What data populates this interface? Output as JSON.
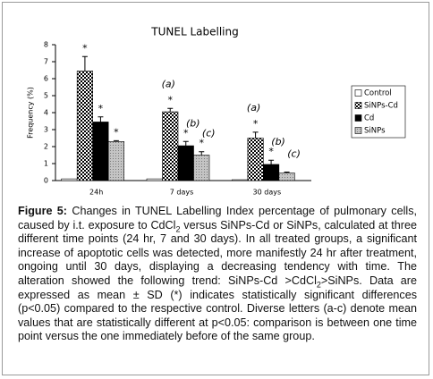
{
  "chart_data": {
    "type": "bar",
    "title": "TUNEL Labelling",
    "y_label": "Frequency (%)",
    "categories": [
      "24h",
      "7 days",
      "30 days"
    ],
    "ylim": [
      0,
      8
    ],
    "yticks": [
      0,
      1,
      2,
      3,
      4,
      5,
      6,
      7,
      8
    ],
    "series": [
      {
        "name": "Control",
        "color": "#ffffff",
        "values": [
          0.1,
          0.1,
          0.05
        ],
        "errors": [
          null,
          null,
          null
        ],
        "stars": [
          null,
          null,
          null
        ],
        "letters": [
          null,
          null,
          null
        ]
      },
      {
        "name": "SiNPs-Cd",
        "color": "#000000",
        "pattern": "checker",
        "values": [
          6.45,
          4.05,
          2.5
        ],
        "errors": [
          0.85,
          0.2,
          0.35
        ],
        "stars": [
          "*",
          "*",
          "*"
        ],
        "letters": [
          null,
          "(a)",
          "(a)"
        ]
      },
      {
        "name": "Cd",
        "color": "#000000",
        "values": [
          3.45,
          2.05,
          0.95
        ],
        "errors": [
          0.3,
          0.25,
          0.25
        ],
        "stars": [
          "*",
          "*",
          "*"
        ],
        "letters": [
          null,
          "(b)",
          "(b)"
        ]
      },
      {
        "name": "SiNPs",
        "color": "#b0b0b0",
        "pattern": "dots",
        "values": [
          2.3,
          1.5,
          0.45
        ],
        "errors": [
          0.05,
          0.2,
          0.05
        ],
        "stars": [
          "*",
          "*",
          null
        ],
        "letters": [
          null,
          "(c)",
          "(c)"
        ]
      }
    ]
  },
  "caption": {
    "label": "Figure 5:",
    "parts": [
      "Changes in TUNEL Labelling Index percentage of pulmonary cells, caused by i.t. exposure to CdCl",
      "2",
      " versus SiNPs-Cd or SiNPs, calculated at three different time points (24 hr, 7 and 30 days). In all treated groups, a significant increase of apoptotic cells was detected, more manifestly 24 hr after treatment, ongoing until 30 days, displaying a decreasing tendency with time. The alteration showed the following trend: SiNPs-Cd >CdCl",
      "2",
      ">SiNPs. Data are expressed as mean ± SD (*) indicates statistically significant differences (p<0.05) compared to the respective control. Diverse letters (a-c) denote mean values that are statistically different at p<0.05: comparison is between one time point versus the one immediately before of the same group."
    ]
  }
}
